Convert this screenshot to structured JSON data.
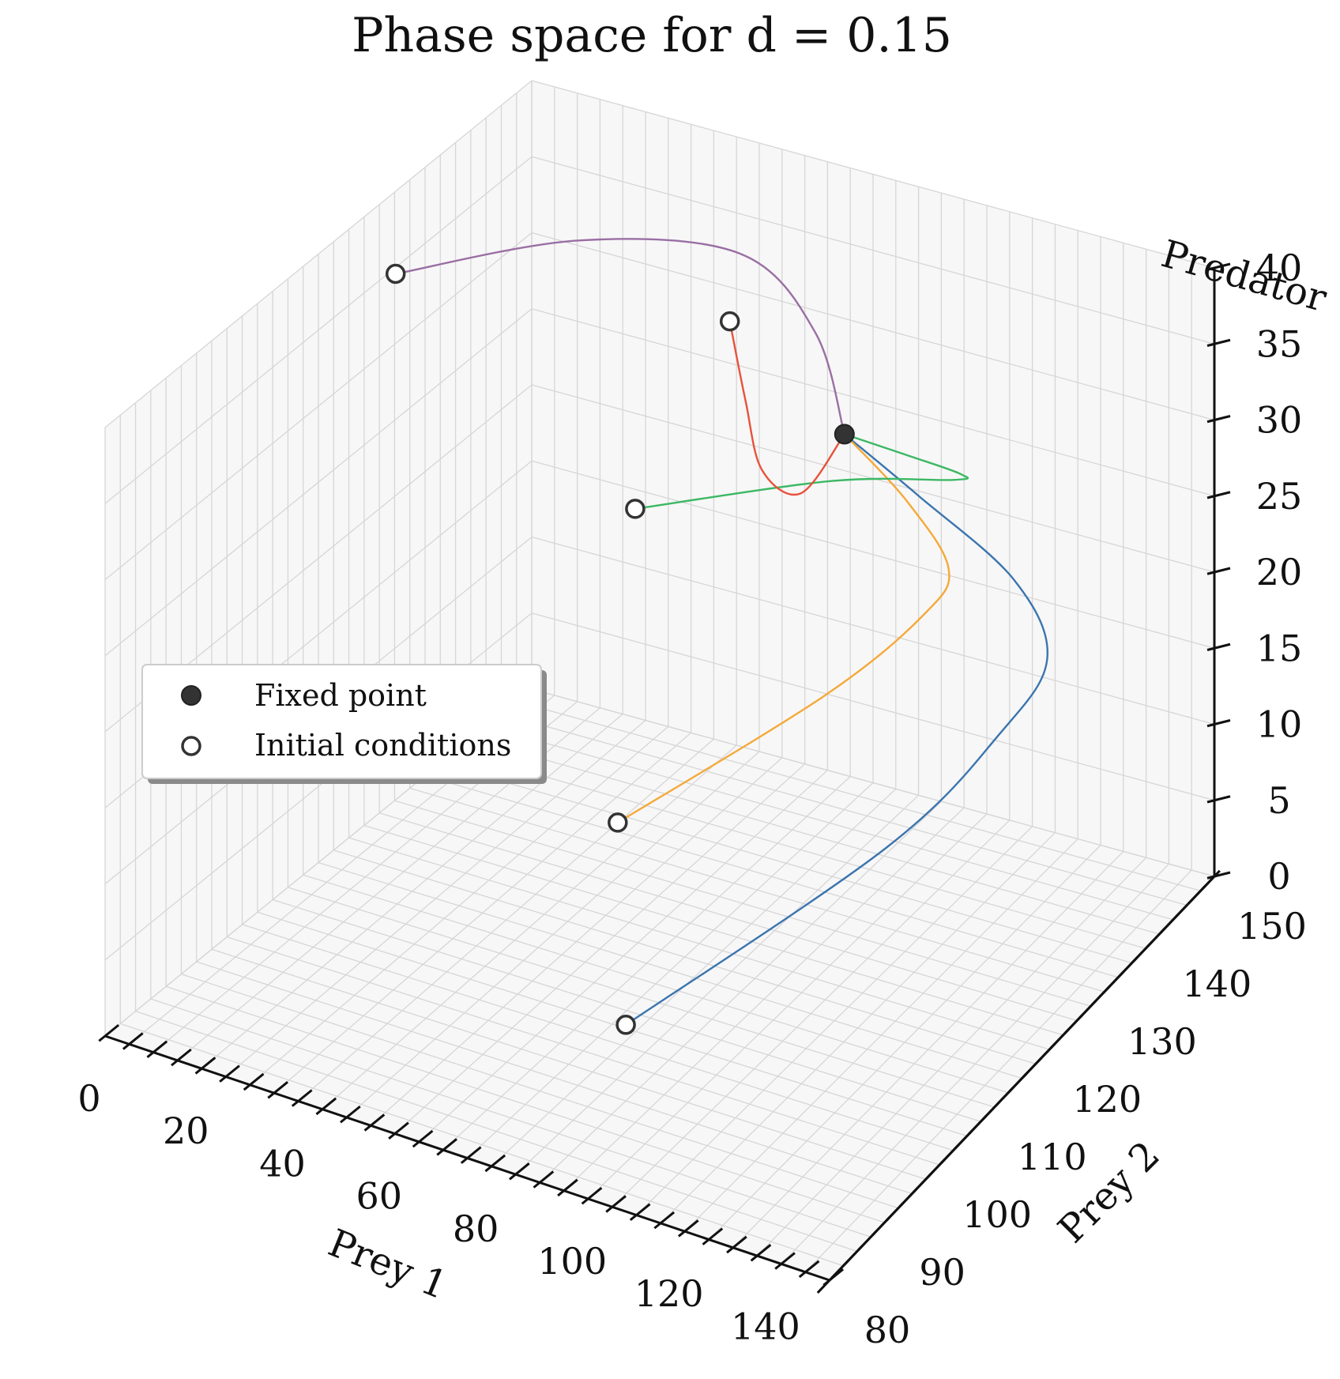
{
  "chart_data": {
    "type": "line3d",
    "title": "Phase space for d = 0.15",
    "xlabel": "Prey 1",
    "ylabel": "Prey 2",
    "zlabel": "Predator",
    "xlim": [
      0,
      150
    ],
    "ylim": [
      80,
      150
    ],
    "zlim": [
      0,
      40
    ],
    "x_tick_labels": [
      "0",
      "20",
      "40",
      "60",
      "80",
      "100",
      "120",
      "140"
    ],
    "y_tick_labels": [
      "80",
      "90",
      "100",
      "110",
      "120",
      "130",
      "140",
      "150"
    ],
    "z_tick_labels": [
      "0",
      "5",
      "10",
      "15",
      "20",
      "25",
      "30",
      "35",
      "40"
    ],
    "grid": true,
    "fixed_point": {
      "x": 100,
      "y": 125,
      "z": 34
    },
    "series": [
      {
        "color": "#3b75af",
        "initial": {
          "x": 90,
          "y": 95,
          "z": 5
        },
        "points": [
          [
            90,
            95,
            5
          ],
          [
            115,
            120,
            10
          ],
          [
            125,
            132,
            14
          ],
          [
            128,
            138,
            17
          ],
          [
            122,
            137,
            22
          ],
          [
            110,
            130,
            29
          ],
          [
            100,
            125,
            34
          ]
        ]
      },
      {
        "color": "#f5a93a",
        "initial": {
          "x": 70,
          "y": 110,
          "z": 11
        },
        "points": [
          [
            70,
            110,
            11
          ],
          [
            92,
            128,
            15
          ],
          [
            105,
            135,
            19
          ],
          [
            109,
            136,
            22
          ],
          [
            106,
            131,
            28
          ],
          [
            100,
            125,
            34
          ]
        ]
      },
      {
        "color": "#3cb864",
        "initial": {
          "x": 55,
          "y": 125,
          "z": 25
        },
        "points": [
          [
            55,
            125,
            25
          ],
          [
            85,
            135,
            26
          ],
          [
            105,
            140,
            26
          ],
          [
            108,
            139,
            27
          ],
          [
            106,
            131,
            31
          ],
          [
            100,
            125,
            34
          ]
        ]
      },
      {
        "color": "#e7523d",
        "initial": {
          "x": 50,
          "y": 145,
          "z": 30
        },
        "points": [
          [
            50,
            145,
            30
          ],
          [
            56,
            143,
            26
          ],
          [
            66,
            138,
            24
          ],
          [
            82,
            132,
            26
          ],
          [
            100,
            125,
            34
          ]
        ]
      },
      {
        "color": "#9a6fa4",
        "initial": {
          "x": 10,
          "y": 120,
          "z": 38
        },
        "points": [
          [
            10,
            120,
            38
          ],
          [
            30,
            135,
            37
          ],
          [
            56,
            142,
            36
          ],
          [
            80,
            136,
            35
          ],
          [
            100,
            125,
            34
          ]
        ]
      }
    ],
    "legend": {
      "position": "left",
      "entries": [
        {
          "label": "Fixed point",
          "marker": "filled-circle",
          "color": "#333333"
        },
        {
          "label": "Initial conditions",
          "marker": "open-circle",
          "color": "#333333"
        }
      ]
    }
  }
}
